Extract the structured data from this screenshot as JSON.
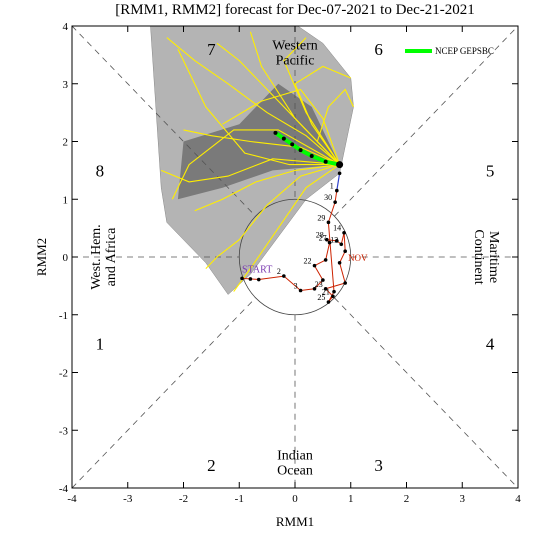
{
  "chart_data": {
    "type": "line",
    "title": "[RMM1, RMM2] forecast for Dec-07-2021 to Dec-21-2021",
    "xlabel": "RMM1",
    "ylabel": "RMM2",
    "xlim": [
      -4,
      4
    ],
    "ylim": [
      -4,
      4
    ],
    "x_ticks": [
      "-4",
      "-3",
      "-2",
      "-1",
      "0",
      "1",
      "2",
      "3",
      "4"
    ],
    "y_ticks": [
      "-4",
      "-3",
      "-2",
      "-1",
      "0",
      "1",
      "2",
      "3",
      "4"
    ],
    "phases": [
      {
        "label": "1",
        "x": -3.5,
        "y": -1.5
      },
      {
        "label": "2",
        "x": -1.5,
        "y": -3.6
      },
      {
        "label": "3",
        "x": 1.5,
        "y": -3.6
      },
      {
        "label": "4",
        "x": 3.5,
        "y": -1.5
      },
      {
        "label": "5",
        "x": 3.5,
        "y": 1.5
      },
      {
        "label": "6",
        "x": 1.5,
        "y": 3.6
      },
      {
        "label": "7",
        "x": -1.5,
        "y": 3.6
      },
      {
        "label": "8",
        "x": -3.5,
        "y": 1.5
      }
    ],
    "regions": [
      {
        "label_lines": [
          "Western",
          "Pacific"
        ],
        "x": 0,
        "y": 3.55,
        "rotate": 0
      },
      {
        "label_lines": [
          "Indian",
          "Ocean"
        ],
        "x": 0,
        "y": -3.55,
        "rotate": 0
      },
      {
        "label_lines": [
          "West. Hem.",
          "and Africa"
        ],
        "x": -3.45,
        "y": 0,
        "rotate": -90
      },
      {
        "label_lines": [
          "Maritime",
          "Continent"
        ],
        "x": 3.45,
        "y": 0,
        "rotate": 90
      }
    ],
    "legend": {
      "label": "NCEP GEPSBC",
      "color": "#00ff00",
      "placement": "top-right"
    },
    "observed": {
      "color": "#cc2200",
      "start_label": "START",
      "month_label": "NOV",
      "points": [
        {
          "label": "",
          "x": -0.95,
          "y": -0.37
        },
        {
          "label": "",
          "x": -0.8,
          "y": -0.38
        },
        {
          "label": "",
          "x": -0.65,
          "y": -0.39
        },
        {
          "label": "2",
          "x": -0.2,
          "y": -0.33
        },
        {
          "label": "3",
          "x": 0.1,
          "y": -0.58
        },
        {
          "label": "",
          "x": 0.35,
          "y": -0.55
        },
        {
          "label": "",
          "x": 0.5,
          "y": -0.4
        },
        {
          "label": "22",
          "x": 0.35,
          "y": -0.15
        },
        {
          "label": "",
          "x": 0.55,
          "y": -0.05
        },
        {
          "label": "27",
          "x": 0.62,
          "y": 0.25
        },
        {
          "label": "28",
          "x": 0.57,
          "y": 0.3
        },
        {
          "label": "",
          "x": 0.75,
          "y": 0.28
        },
        {
          "label": "12",
          "x": 0.83,
          "y": 0.22
        },
        {
          "label": "14",
          "x": 0.88,
          "y": 0.42
        },
        {
          "label": "",
          "x": 0.9,
          "y": 0.1
        },
        {
          "label": "",
          "x": 0.8,
          "y": -0.1
        },
        {
          "label": "",
          "x": 0.9,
          "y": -0.45
        },
        {
          "label": "23",
          "x": 0.55,
          "y": -0.55
        },
        {
          "label": "21",
          "x": 0.68,
          "y": -0.68
        },
        {
          "label": "25",
          "x": 0.6,
          "y": -0.78
        },
        {
          "label": "",
          "x": 0.7,
          "y": -0.6
        },
        {
          "label": "29",
          "x": 0.6,
          "y": 0.6
        },
        {
          "label": "30",
          "x": 0.72,
          "y": 0.95
        },
        {
          "label": "1",
          "x": 0.75,
          "y": 1.15
        },
        {
          "label": "",
          "x": 0.8,
          "y": 1.45
        }
      ]
    },
    "forecast_ensemble_mean": [
      {
        "x": 0.8,
        "y": 1.6
      },
      {
        "x": 0.55,
        "y": 1.65
      },
      {
        "x": 0.3,
        "y": 1.75
      },
      {
        "x": 0.1,
        "y": 1.85
      },
      {
        "x": -0.05,
        "y": 1.95
      },
      {
        "x": -0.2,
        "y": 2.05
      },
      {
        "x": -0.35,
        "y": 2.15
      }
    ],
    "forecast_members_color": "#ffee00",
    "forecast_members": [
      [
        {
          "x": 0.8,
          "y": 1.6
        },
        {
          "x": 0.2,
          "y": 2.1
        },
        {
          "x": -0.5,
          "y": 2.5
        },
        {
          "x": -1.2,
          "y": 3.0
        },
        {
          "x": -1.8,
          "y": 3.4
        },
        {
          "x": -2.3,
          "y": 3.8
        }
      ],
      [
        {
          "x": 0.8,
          "y": 1.6
        },
        {
          "x": 0.0,
          "y": 2.4
        },
        {
          "x": -0.6,
          "y": 3.3
        },
        {
          "x": -0.8,
          "y": 3.9
        }
      ],
      [
        {
          "x": 0.8,
          "y": 1.6
        },
        {
          "x": 0.3,
          "y": 2.3
        },
        {
          "x": 0.0,
          "y": 3.0
        },
        {
          "x": 0.5,
          "y": 3.3
        },
        {
          "x": 1.0,
          "y": 3.1
        }
      ],
      [
        {
          "x": 0.8,
          "y": 1.6
        },
        {
          "x": 0.1,
          "y": 1.9
        },
        {
          "x": -0.8,
          "y": 2.0
        },
        {
          "x": -1.5,
          "y": 2.1
        },
        {
          "x": -2.0,
          "y": 2.2
        }
      ],
      [
        {
          "x": 0.8,
          "y": 1.6
        },
        {
          "x": 0.0,
          "y": 1.5
        },
        {
          "x": -0.7,
          "y": 1.3
        },
        {
          "x": -1.3,
          "y": 1.0
        },
        {
          "x": -1.8,
          "y": 0.8
        }
      ],
      [
        {
          "x": 0.8,
          "y": 1.6
        },
        {
          "x": 0.2,
          "y": 1.2
        },
        {
          "x": -0.3,
          "y": 0.5
        },
        {
          "x": -0.8,
          "y": -0.2
        },
        {
          "x": -1.1,
          "y": -0.6
        }
      ],
      [
        {
          "x": 0.8,
          "y": 1.6
        },
        {
          "x": -0.1,
          "y": 1.6
        },
        {
          "x": -0.9,
          "y": 1.8
        },
        {
          "x": -1.6,
          "y": 2.6
        },
        {
          "x": -2.1,
          "y": 3.6
        }
      ],
      [
        {
          "x": 0.8,
          "y": 1.6
        },
        {
          "x": 0.4,
          "y": 2.0
        },
        {
          "x": 0.6,
          "y": 2.6
        },
        {
          "x": 0.9,
          "y": 2.9
        },
        {
          "x": 1.05,
          "y": 2.6
        }
      ],
      [
        {
          "x": 0.8,
          "y": 1.6
        },
        {
          "x": -0.3,
          "y": 2.2
        },
        {
          "x": -1.1,
          "y": 2.2
        },
        {
          "x": -1.9,
          "y": 1.6
        },
        {
          "x": -2.2,
          "y": 1.0
        }
      ],
      [
        {
          "x": 0.8,
          "y": 1.6
        },
        {
          "x": 0.1,
          "y": 1.4
        },
        {
          "x": -0.5,
          "y": 0.9
        },
        {
          "x": -1.0,
          "y": 0.3
        },
        {
          "x": -1.4,
          "y": 0.0
        },
        {
          "x": -1.6,
          "y": -0.2
        }
      ],
      [
        {
          "x": 0.8,
          "y": 1.6
        },
        {
          "x": -0.2,
          "y": 2.6
        },
        {
          "x": -1.0,
          "y": 3.4
        },
        {
          "x": -1.4,
          "y": 3.7
        }
      ],
      [
        {
          "x": 0.8,
          "y": 1.6
        },
        {
          "x": 0.2,
          "y": 2.5
        },
        {
          "x": -0.2,
          "y": 3.4
        },
        {
          "x": 0.2,
          "y": 3.8
        }
      ],
      [
        {
          "x": 0.8,
          "y": 1.6
        },
        {
          "x": 0.5,
          "y": 2.4
        },
        {
          "x": 0.1,
          "y": 2.9
        },
        {
          "x": -0.6,
          "y": 2.7
        },
        {
          "x": -1.3,
          "y": 2.3
        }
      ],
      [
        {
          "x": 0.8,
          "y": 1.6
        },
        {
          "x": -0.4,
          "y": 1.7
        },
        {
          "x": -1.2,
          "y": 1.4
        },
        {
          "x": -1.9,
          "y": 1.3
        },
        {
          "x": -2.4,
          "y": 1.5
        }
      ]
    ]
  }
}
